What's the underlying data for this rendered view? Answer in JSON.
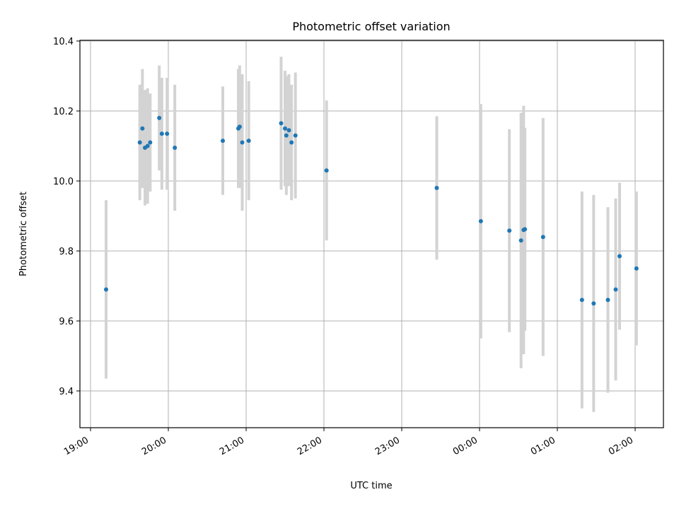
{
  "chart_data": {
    "type": "scatter",
    "title": "Photometric offset variation",
    "xlabel": "UTC time",
    "ylabel": "Photometric offset",
    "x_ticks": [
      "19:00",
      "20:00",
      "21:00",
      "22:00",
      "23:00",
      "00:00",
      "01:00",
      "02:00"
    ],
    "y_ticks": [
      "9.4",
      "9.6",
      "9.8",
      "10.0",
      "10.2",
      "10.4"
    ],
    "grid": true,
    "colors": {
      "point": "#1f77b4",
      "errorbar": "#d3d3d3",
      "grid": "#b0b0b0"
    },
    "series": [
      {
        "points": [
          {
            "t": "19:12",
            "y": 9.69,
            "err": 0.255
          },
          {
            "t": "19:38",
            "y": 10.11,
            "err": 0.165
          },
          {
            "t": "19:40",
            "y": 10.15,
            "err": 0.17
          },
          {
            "t": "19:42",
            "y": 10.095,
            "err": 0.165
          },
          {
            "t": "19:44",
            "y": 10.1,
            "err": 0.165
          },
          {
            "t": "19:46",
            "y": 10.11,
            "err": 0.14
          },
          {
            "t": "19:53",
            "y": 10.18,
            "err": 0.15
          },
          {
            "t": "19:55",
            "y": 10.135,
            "err": 0.16
          },
          {
            "t": "19:59",
            "y": 10.135,
            "err": 0.16
          },
          {
            "t": "20:05",
            "y": 10.095,
            "err": 0.18
          },
          {
            "t": "20:42",
            "y": 10.115,
            "err": 0.155
          },
          {
            "t": "20:54",
            "y": 10.15,
            "err": 0.17
          },
          {
            "t": "20:55",
            "y": 10.155,
            "err": 0.175
          },
          {
            "t": "20:57",
            "y": 10.11,
            "err": 0.195
          },
          {
            "t": "21:02",
            "y": 10.115,
            "err": 0.17
          },
          {
            "t": "21:27",
            "y": 10.165,
            "err": 0.19
          },
          {
            "t": "21:30",
            "y": 10.15,
            "err": 0.165
          },
          {
            "t": "21:31",
            "y": 10.13,
            "err": 0.17
          },
          {
            "t": "21:33",
            "y": 10.145,
            "err": 0.16
          },
          {
            "t": "21:35",
            "y": 10.11,
            "err": 0.165
          },
          {
            "t": "21:38",
            "y": 10.13,
            "err": 0.18
          },
          {
            "t": "22:02",
            "y": 10.03,
            "err": 0.2
          },
          {
            "t": "23:27",
            "y": 9.98,
            "err": 0.205
          },
          {
            "t": "00:01",
            "y": 9.885,
            "err": 0.335
          },
          {
            "t": "00:23",
            "y": 9.858,
            "err": 0.29
          },
          {
            "t": "00:32",
            "y": 9.83,
            "err": 0.365
          },
          {
            "t": "00:34",
            "y": 9.86,
            "err": 0.355
          },
          {
            "t": "00:35",
            "y": 9.862,
            "err": 0.29
          },
          {
            "t": "00:49",
            "y": 9.84,
            "err": 0.34
          },
          {
            "t": "01:19",
            "y": 9.66,
            "err": 0.31
          },
          {
            "t": "01:28",
            "y": 9.65,
            "err": 0.31
          },
          {
            "t": "01:39",
            "y": 9.66,
            "err": 0.265
          },
          {
            "t": "01:45",
            "y": 9.69,
            "err": 0.26
          },
          {
            "t": "01:48",
            "y": 9.785,
            "err": 0.21
          },
          {
            "t": "02:01",
            "y": 9.75,
            "err": 0.22
          }
        ]
      }
    ]
  }
}
